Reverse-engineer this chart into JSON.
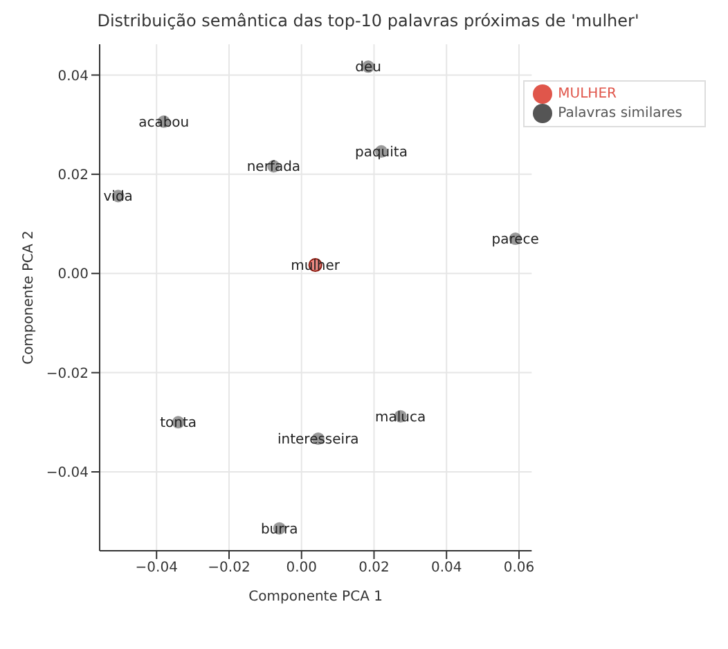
{
  "chart_data": {
    "type": "scatter",
    "title": "Distribuição semântica das top-10 palavras próximas de 'mulher'",
    "xlabel": "Componente PCA 1",
    "ylabel": "Componente PCA 2",
    "xlim": [
      -0.0557,
      0.0635
    ],
    "ylim": [
      -0.0559,
      0.0462
    ],
    "xticks": [
      {
        "value": -0.04,
        "label": "−0.04"
      },
      {
        "value": -0.02,
        "label": "−0.02"
      },
      {
        "value": 0,
        "label": "0.00"
      },
      {
        "value": 0.02,
        "label": "0.02"
      },
      {
        "value": 0.04,
        "label": "0.04"
      },
      {
        "value": 0.06,
        "label": "0.06"
      }
    ],
    "yticks": [
      {
        "value": -0.04,
        "label": "−0.04"
      },
      {
        "value": -0.02,
        "label": "−0.02"
      },
      {
        "value": 0,
        "label": "0.00"
      },
      {
        "value": 0.02,
        "label": "0.02"
      },
      {
        "value": 0.04,
        "label": "0.04"
      }
    ],
    "grid": true,
    "legend": "top right",
    "marker": "circle",
    "series": [
      {
        "name": "Palavras similares",
        "color": "#555555",
        "x": [
          0.0184,
          -0.038,
          0.022,
          -0.0077,
          -0.0506,
          0.059,
          -0.034,
          0.0273,
          0.0046,
          -0.0061
        ],
        "values": [
          0.0417,
          0.0306,
          0.0246,
          0.0216,
          0.0156,
          0.007,
          -0.03,
          -0.0288,
          -0.0333,
          -0.0514
        ],
        "value_labels": [
          "deu",
          "acabou",
          "paquita",
          "nerfada",
          "vida",
          "parece",
          "tonta",
          "maluca",
          "interesseira",
          "burra"
        ]
      },
      {
        "name": "MULHER",
        "color": "#e0564b",
        "x": [
          0.0038
        ],
        "values": [
          0.0017
        ],
        "value_labels": [
          "mulher"
        ]
      }
    ]
  }
}
